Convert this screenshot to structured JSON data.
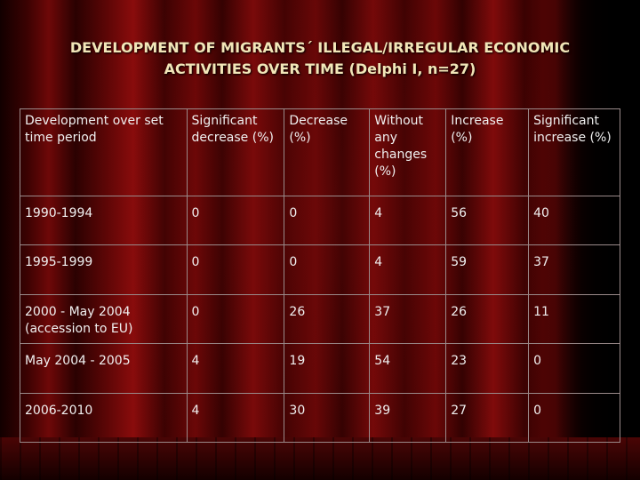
{
  "title": {
    "line1": "DEVELOPMENT OF MIGRANTS´ ILLEGAL/IRREGULAR ECONOMIC",
    "line2": "ACTIVITIES OVER TIME (Delphi I, n=27)"
  },
  "table": {
    "headers": [
      "Development over set time period",
      "Significant decrease (%)",
      "Decrease (%)",
      "Without any changes (%)",
      "Increase (%)",
      "Significant increase (%)"
    ],
    "rows": [
      [
        "1990-1994",
        "0",
        "0",
        "4",
        "56",
        "40"
      ],
      [
        "1995-1999",
        "0",
        "0",
        "4",
        "59",
        "37"
      ],
      [
        "2000 - May 2004 (accession to EU)",
        "0",
        "26",
        "37",
        "26",
        "11"
      ],
      [
        "May 2004 - 2005",
        "4",
        "19",
        "54",
        "23",
        "0"
      ],
      [
        "2006-2010",
        "4",
        "30",
        "39",
        "27",
        "0"
      ]
    ]
  }
}
